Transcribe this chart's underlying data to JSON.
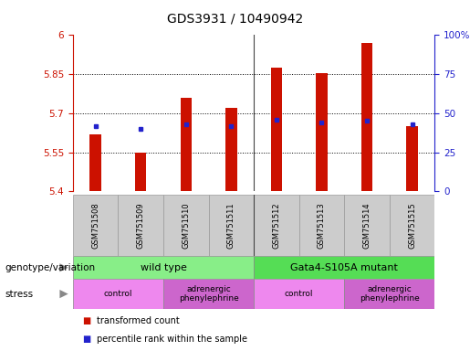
{
  "title": "GDS3931 / 10490942",
  "samples": [
    "GSM751508",
    "GSM751509",
    "GSM751510",
    "GSM751511",
    "GSM751512",
    "GSM751513",
    "GSM751514",
    "GSM751515"
  ],
  "transformed_counts": [
    5.62,
    5.55,
    5.76,
    5.72,
    5.875,
    5.855,
    5.97,
    5.65
  ],
  "percentile_ranks": [
    42,
    40,
    43,
    42,
    46,
    44,
    45,
    43
  ],
  "ylim_left": [
    5.4,
    6.0
  ],
  "ylim_right": [
    0,
    100
  ],
  "yticks_left": [
    5.4,
    5.55,
    5.7,
    5.85,
    6.0
  ],
  "ytick_labels_left": [
    "5.4",
    "5.55",
    "5.7",
    "5.85",
    "6"
  ],
  "yticks_right": [
    0,
    25,
    50,
    75,
    100
  ],
  "ytick_labels_right": [
    "0",
    "25",
    "50",
    "75",
    "100%"
  ],
  "bar_color": "#cc1100",
  "dot_color": "#2222cc",
  "bar_bottom": 5.4,
  "bar_width": 0.25,
  "genotype_groups": [
    {
      "label": "wild type",
      "start": 0,
      "end": 4,
      "color": "#88ee88"
    },
    {
      "label": "Gata4-S105A mutant",
      "start": 4,
      "end": 8,
      "color": "#55dd55"
    }
  ],
  "stress_groups": [
    {
      "label": "control",
      "start": 0,
      "end": 2,
      "color": "#ee88ee"
    },
    {
      "label": "adrenergic\nphenylephrine",
      "start": 2,
      "end": 4,
      "color": "#cc66cc"
    },
    {
      "label": "control",
      "start": 4,
      "end": 6,
      "color": "#ee88ee"
    },
    {
      "label": "adrenergic\nphenylephrine",
      "start": 6,
      "end": 8,
      "color": "#cc66cc"
    }
  ],
  "legend_items": [
    {
      "label": "transformed count",
      "color": "#cc1100"
    },
    {
      "label": "percentile rank within the sample",
      "color": "#2222cc"
    }
  ],
  "left_axis_color": "#cc1100",
  "right_axis_color": "#2222cc",
  "background_color": "#ffffff",
  "plot_bg_color": "#ffffff",
  "grid_color": "#000000",
  "label_genotype": "genotype/variation",
  "label_stress": "stress",
  "separator_color": "#444444",
  "tick_label_area_color": "#cccccc"
}
